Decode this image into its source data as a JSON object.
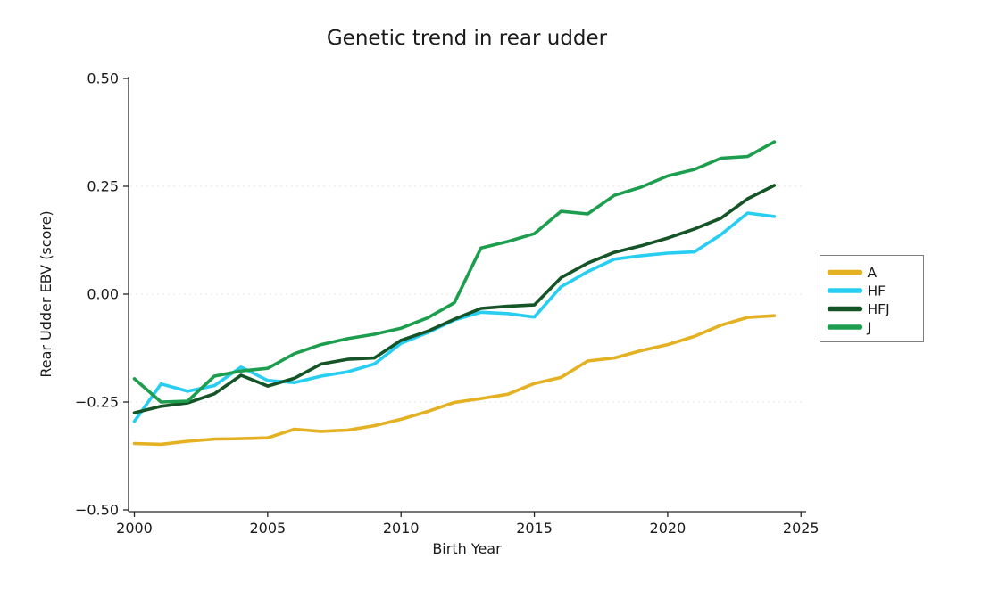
{
  "page": {
    "background": "#ffffff"
  },
  "chart_data": {
    "type": "line",
    "title": "Genetic trend in rear udder",
    "xlabel": "Birth Year",
    "ylabel": "Rear Udder EBV (score)",
    "xlim": [
      1999.8,
      2025.4
    ],
    "ylim": [
      -0.5,
      0.5
    ],
    "grid": "faint dotted horizontal lines at -0.25, 0.00, 0.25",
    "grid_color": "#e4e4e4",
    "axis_color": "#262626",
    "legend_position": "right-outside",
    "legend_border_color": "#7f7f7f",
    "x_ticks": {
      "values": [
        2000,
        2005,
        2010,
        2015,
        2020,
        2025
      ],
      "labels": [
        "2000",
        "2005",
        "2010",
        "2015",
        "2020",
        "2025"
      ]
    },
    "y_ticks": {
      "values": [
        0.5,
        0.25,
        0.0,
        -0.25,
        -0.5
      ],
      "labels": [
        "0.50",
        "0.25",
        "0.00",
        "−0.25",
        "−0.50"
      ]
    },
    "gridline_values": [
      0.25,
      0.0,
      -0.25
    ],
    "x": [
      2000,
      2001,
      2002,
      2003,
      2004,
      2005,
      2006,
      2007,
      2008,
      2009,
      2010,
      2011,
      2012,
      2013,
      2014,
      2015,
      2016,
      2017,
      2018,
      2019,
      2020,
      2021,
      2022,
      2023,
      2024
    ],
    "series": [
      {
        "name": "A",
        "color": "#E3B122",
        "values": [
          -0.346,
          -0.348,
          -0.341,
          -0.336,
          -0.335,
          -0.333,
          -0.313,
          -0.318,
          -0.315,
          -0.305,
          -0.29,
          -0.272,
          -0.251,
          -0.242,
          -0.232,
          -0.207,
          -0.193,
          -0.155,
          -0.148,
          -0.131,
          -0.117,
          -0.098,
          -0.072,
          -0.054,
          -0.05
        ]
      },
      {
        "name": "HF",
        "color": "#28CDF2",
        "values": [
          -0.295,
          -0.208,
          -0.225,
          -0.212,
          -0.169,
          -0.2,
          -0.205,
          -0.19,
          -0.18,
          -0.162,
          -0.114,
          -0.089,
          -0.06,
          -0.042,
          -0.045,
          -0.053,
          0.017,
          0.052,
          0.081,
          0.089,
          0.095,
          0.098,
          0.138,
          0.188,
          0.18
        ]
      },
      {
        "name": "HFJ",
        "color": "#155427",
        "values": [
          -0.275,
          -0.26,
          -0.252,
          -0.231,
          -0.188,
          -0.213,
          -0.195,
          -0.162,
          -0.151,
          -0.148,
          -0.107,
          -0.086,
          -0.058,
          -0.033,
          -0.028,
          -0.025,
          0.038,
          0.072,
          0.097,
          0.112,
          0.13,
          0.151,
          0.176,
          0.221,
          0.252
        ]
      },
      {
        "name": "J",
        "color": "#1D9E4E",
        "values": [
          -0.196,
          -0.25,
          -0.248,
          -0.19,
          -0.178,
          -0.172,
          -0.138,
          -0.117,
          -0.103,
          -0.093,
          -0.079,
          -0.055,
          -0.02,
          0.107,
          0.122,
          0.14,
          0.192,
          0.186,
          0.229,
          0.248,
          0.274,
          0.289,
          0.315,
          0.319,
          0.353
        ]
      }
    ]
  }
}
